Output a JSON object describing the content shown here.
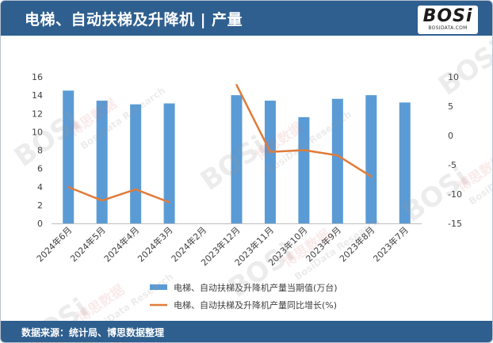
{
  "header": {
    "title": "电梯、自动扶梯及升降机 | 产量"
  },
  "logo": {
    "main": "BOSi",
    "sub": "BOSIDATA.COM"
  },
  "footer": {
    "source": "数据来源：统计局、博思数据整理"
  },
  "colors": {
    "header_bg": "#2e5f8f",
    "bar": "#5b9bd5",
    "line": "#e07b39"
  },
  "watermark": {
    "brand": "BOSi",
    "cn": "博思数据",
    "en": "BosiData Research"
  },
  "chart_data": {
    "type": "bar",
    "categories": [
      "2024年6月",
      "2024年5月",
      "2024年4月",
      "2024年3月",
      "2024年2月",
      "2023年12月",
      "2023年11月",
      "2023年10月",
      "2023年9月",
      "2023年8月",
      "2023年7月"
    ],
    "series": [
      {
        "name": "电梯、自动扶梯及升降机产量当期值(万台)",
        "type": "bar",
        "axis": "left",
        "values": [
          14.5,
          13.4,
          13.0,
          13.1,
          null,
          14.0,
          13.4,
          11.6,
          13.6,
          14.0,
          13.2
        ]
      },
      {
        "name": "电梯、自动扶梯及升降机产量同比增长(%)",
        "type": "line",
        "axis": "right",
        "values": [
          -8.8,
          -11.1,
          -9.2,
          -11.4,
          null,
          8.6,
          -2.8,
          -2.5,
          -3.4,
          -7.0,
          null
        ]
      }
    ],
    "y_left": {
      "min": 0,
      "max": 16,
      "step": 2,
      "ticks": [
        "0",
        "2",
        "4",
        "6",
        "8",
        "10",
        "12",
        "14",
        "16"
      ]
    },
    "y_right": {
      "min": -15,
      "max": 10,
      "step": 5,
      "ticks": [
        "-15",
        "-10",
        "-5",
        "0",
        "5",
        "10"
      ]
    },
    "grid": false,
    "legend_position": "bottom"
  }
}
